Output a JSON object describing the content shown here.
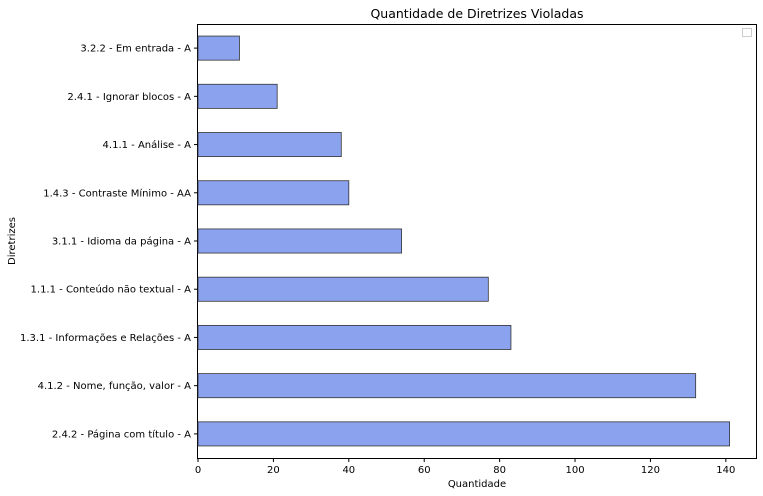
{
  "chart_data": {
    "type": "bar",
    "orientation": "horizontal",
    "title": "Quantidade de Diretrizes Violadas",
    "xlabel": "Quantidade",
    "ylabel": "Diretrizes",
    "categories": [
      "2.4.2 - Página com título - A",
      "4.1.2 - Nome, função, valor - A",
      "1.3.1 - Informações e Relações - A",
      "1.1.1 - Conteúdo não textual - A",
      "3.1.1 - Idioma da página - A",
      "1.4.3 - Contraste Mínimo - AA",
      "4.1.1 - Análise - A",
      "2.4.1 - Ignorar blocos - A",
      "3.2.2 - Em entrada - A"
    ],
    "values": [
      141,
      132,
      83,
      77,
      54,
      40,
      38,
      21,
      11
    ],
    "xlim": [
      0,
      148
    ],
    "xticks": [
      0,
      20,
      40,
      60,
      80,
      100,
      120,
      140
    ],
    "grid": false,
    "legend": "top-right (empty)",
    "bar_color": "#8ba2ee",
    "edge_color": "#333333"
  }
}
